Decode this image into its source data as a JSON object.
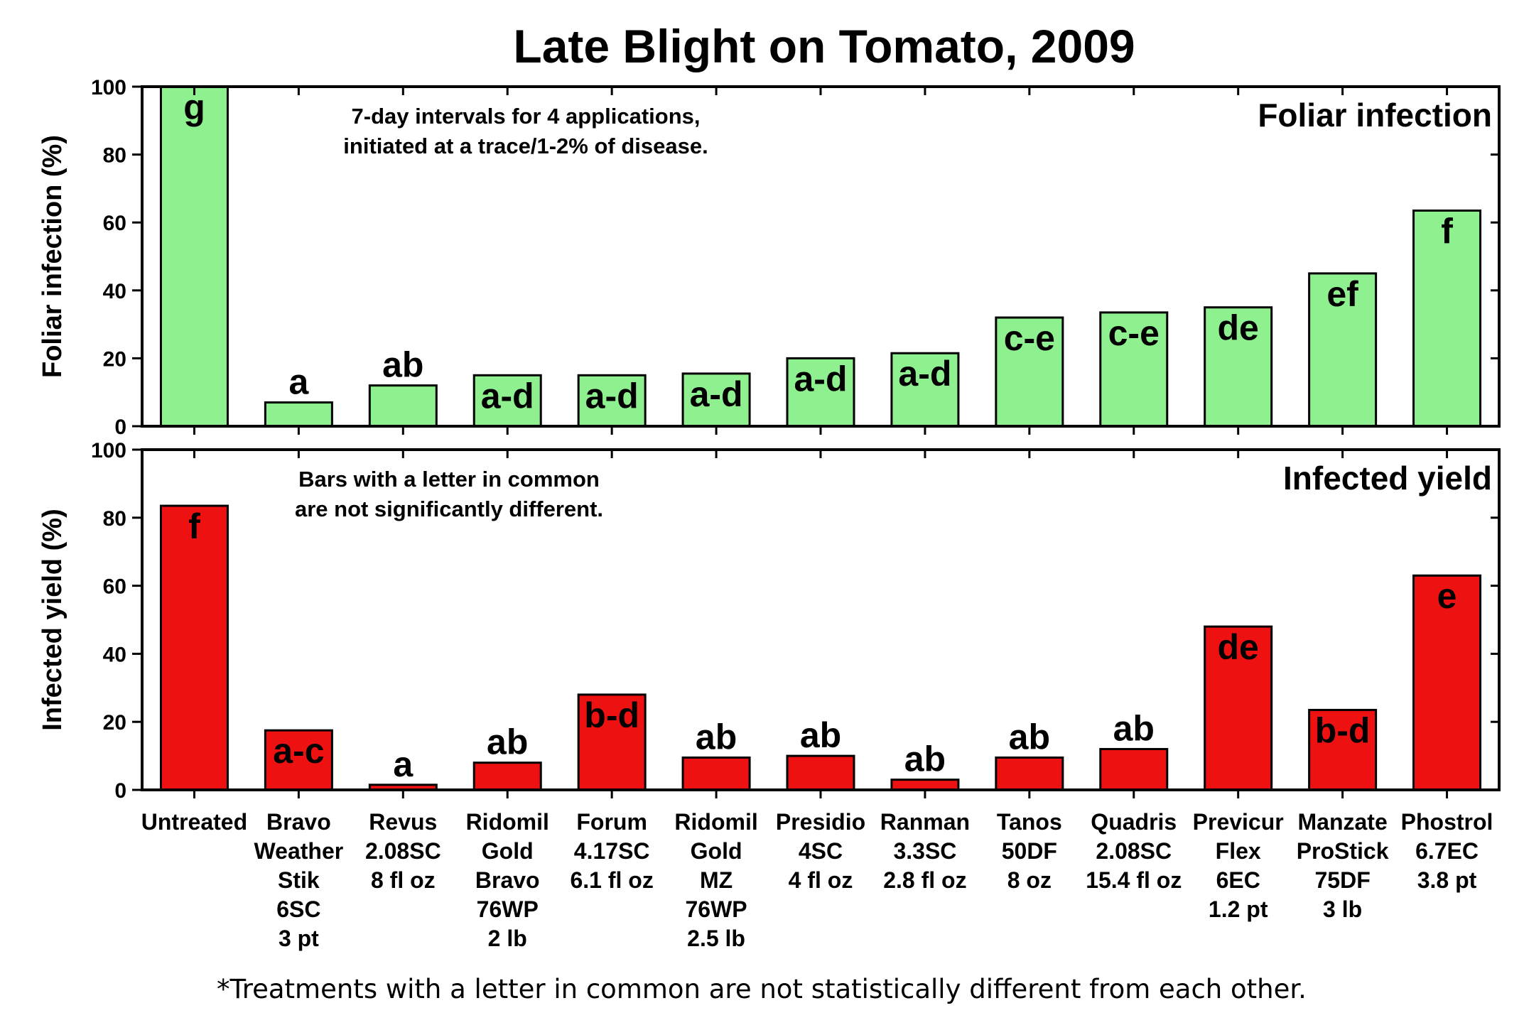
{
  "title": "Late Blight on Tomato, 2009",
  "footnote": "*Treatments with a letter in common are not statistically different from each other.",
  "categories": [
    [
      "Untreated"
    ],
    [
      "Bravo",
      "Weather",
      "Stik",
      "6SC",
      "3 pt"
    ],
    [
      "Revus",
      "2.08SC",
      "8 fl oz"
    ],
    [
      "Ridomil",
      "Gold",
      "Bravo",
      "76WP",
      "2 lb"
    ],
    [
      "Forum",
      "4.17SC",
      "6.1 fl oz"
    ],
    [
      "Ridomil",
      "Gold",
      "MZ",
      "76WP",
      "2.5 lb"
    ],
    [
      "Presidio",
      "4SC",
      "4 fl oz"
    ],
    [
      "Ranman",
      "3.3SC",
      "2.8 fl oz"
    ],
    [
      "Tanos",
      "50DF",
      "8 oz"
    ],
    [
      "Quadris",
      "2.08SC",
      "15.4 fl oz"
    ],
    [
      "Previcur",
      "Flex",
      "6EC",
      "1.2 pt"
    ],
    [
      "Manzate",
      "ProStick",
      "75DF",
      "3 lb"
    ],
    [
      "Phostrol",
      "6.7EC",
      "3.8 pt"
    ]
  ],
  "chart_data": [
    {
      "type": "bar",
      "panel_title": "Foliar infection",
      "ylabel": "Foliar infection (%)",
      "ylim": [
        0,
        100
      ],
      "yticks": [
        "0",
        "20",
        "40",
        "60",
        "80",
        "100"
      ],
      "note": [
        "7-day intervals for 4 applications,",
        "initiated at a trace/1-2% of disease."
      ],
      "bar_color": "#8ef08e",
      "values": [
        100,
        7,
        12,
        15,
        15,
        15.5,
        20,
        21.5,
        32,
        33.5,
        35,
        45,
        63.5
      ],
      "labels": [
        "g",
        "a",
        "ab",
        "a-d",
        "a-d",
        "a-d",
        "a-d",
        "a-d",
        "c-e",
        "c-e",
        "de",
        "ef",
        "f"
      ]
    },
    {
      "type": "bar",
      "panel_title": "Infected yield",
      "ylabel": "Infected yield (%)",
      "ylim": [
        0,
        100
      ],
      "yticks": [
        "0",
        "20",
        "40",
        "60",
        "80",
        "100"
      ],
      "note": [
        "Bars with a letter in common",
        "are not significantly different."
      ],
      "bar_color": "#ee1111",
      "values": [
        83.5,
        17.5,
        1.5,
        8,
        28,
        9.5,
        10,
        3,
        9.5,
        12,
        48,
        23.5,
        63
      ],
      "labels": [
        "f",
        "a-c",
        "a",
        "ab",
        "b-d",
        "ab",
        "ab",
        "ab",
        "ab",
        "ab",
        "de",
        "b-d",
        "e"
      ]
    }
  ]
}
